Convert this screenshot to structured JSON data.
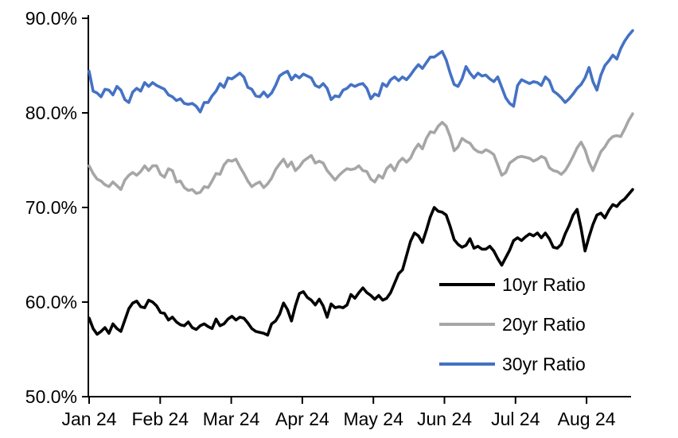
{
  "chart_data": {
    "type": "line",
    "title": "",
    "unit": "percent",
    "grid": false,
    "legend_position": "inside-lower-right",
    "y_axis": {
      "min": 50,
      "max": 90,
      "step": 10,
      "tick_labels": [
        "90.0%",
        "80.0%",
        "70.0%",
        "60.0%",
        "50.0%"
      ]
    },
    "x_axis": {
      "tick_labels": [
        "Jan 24",
        "Feb 24",
        "Mar 24",
        "Apr 24",
        "May 24",
        "Jun 24",
        "Jul 24",
        "Aug 24"
      ],
      "range_note": "daily data from Jan 2024 to ~Aug 20 2024"
    },
    "legend": {
      "items": [
        {
          "label": "10yr Ratio",
          "color": "#000000"
        },
        {
          "label": "20yr Ratio",
          "color": "#a6a6a6"
        },
        {
          "label": "30yr Ratio",
          "color": "#4472c4"
        }
      ]
    },
    "series": [
      {
        "name": "10yr Ratio",
        "color": "#000000",
        "values": [
          58.3,
          57.2,
          56.6,
          56.9,
          57.3,
          56.7,
          57.7,
          57.2,
          56.9,
          58.1,
          59.3,
          59.9,
          60.1,
          59.5,
          59.4,
          60.2,
          60.0,
          59.6,
          58.9,
          58.8,
          58.1,
          58.4,
          57.9,
          57.6,
          57.5,
          57.9,
          57.3,
          57.1,
          57.5,
          57.7,
          57.4,
          57.2,
          58.2,
          57.5,
          57.7,
          58.2,
          58.5,
          58.1,
          58.4,
          58.3,
          57.8,
          57.2,
          56.9,
          56.8,
          56.7,
          56.5,
          57.7,
          58.0,
          58.7,
          59.9,
          59.2,
          58.0,
          59.6,
          60.9,
          61.1,
          60.5,
          60.2,
          59.7,
          60.3,
          59.6,
          58.4,
          59.8,
          59.4,
          59.5,
          59.4,
          59.7,
          60.8,
          60.4,
          61.0,
          61.5,
          61.0,
          60.7,
          60.3,
          60.7,
          60.2,
          60.4,
          61.0,
          62.0,
          63.0,
          63.4,
          64.9,
          66.4,
          67.3,
          67.0,
          66.3,
          67.6,
          69.0,
          70.0,
          69.6,
          69.5,
          69.2,
          68.0,
          66.6,
          66.1,
          65.8,
          66.0,
          66.7,
          65.7,
          65.9,
          65.6,
          65.6,
          65.9,
          65.4,
          64.6,
          63.9,
          64.7,
          65.5,
          66.5,
          66.8,
          66.5,
          66.9,
          67.2,
          67.0,
          67.3,
          66.8,
          67.3,
          66.7,
          65.8,
          65.7,
          66.1,
          67.2,
          68.1,
          69.2,
          69.8,
          67.8,
          65.4,
          66.9,
          68.2,
          69.2,
          69.4,
          68.9,
          69.7,
          70.3,
          70.1,
          70.6,
          70.9,
          71.4,
          71.9
        ]
      },
      {
        "name": "20yr Ratio",
        "color": "#a6a6a6",
        "values": [
          74.4,
          73.6,
          73.0,
          72.8,
          72.4,
          72.2,
          72.7,
          72.3,
          71.9,
          72.9,
          73.4,
          73.7,
          73.4,
          73.8,
          74.4,
          73.9,
          74.4,
          74.4,
          73.5,
          73.2,
          74.1,
          73.9,
          72.7,
          72.8,
          72.1,
          71.8,
          71.9,
          71.5,
          71.6,
          72.2,
          72.1,
          72.8,
          73.6,
          73.5,
          74.5,
          75.0,
          74.9,
          75.1,
          74.3,
          73.6,
          72.8,
          72.2,
          72.5,
          72.7,
          72.1,
          72.5,
          73.1,
          74.0,
          74.6,
          75.1,
          74.3,
          74.8,
          73.9,
          74.3,
          74.9,
          75.2,
          75.5,
          74.7,
          74.9,
          74.7,
          73.9,
          73.4,
          72.9,
          73.4,
          73.8,
          74.1,
          74.0,
          74.1,
          74.4,
          73.9,
          73.8,
          73.0,
          72.7,
          73.4,
          73.1,
          74.1,
          74.5,
          73.9,
          74.8,
          75.2,
          74.8,
          75.2,
          76.1,
          76.7,
          76.2,
          77.3,
          78.0,
          77.9,
          78.6,
          79.0,
          78.6,
          77.5,
          76.0,
          76.4,
          77.3,
          77.0,
          76.8,
          76.2,
          75.9,
          75.8,
          76.1,
          75.9,
          75.6,
          74.5,
          73.4,
          73.7,
          74.7,
          75.0,
          75.3,
          75.4,
          75.3,
          75.2,
          74.9,
          75.1,
          75.4,
          75.2,
          74.2,
          73.9,
          73.8,
          73.5,
          73.9,
          74.6,
          75.4,
          76.3,
          76.9,
          76.1,
          74.8,
          73.9,
          74.9,
          75.9,
          76.4,
          77.1,
          77.5,
          77.6,
          77.5,
          78.3,
          79.2,
          79.9
        ]
      },
      {
        "name": "30yr Ratio",
        "color": "#4472c4",
        "values": [
          84.4,
          82.3,
          82.1,
          81.7,
          82.5,
          82.4,
          81.9,
          82.8,
          82.4,
          81.4,
          81.1,
          82.2,
          82.6,
          82.3,
          83.2,
          82.8,
          83.2,
          82.9,
          82.7,
          82.5,
          81.9,
          81.7,
          81.3,
          81.5,
          81.0,
          80.9,
          81.0,
          80.7,
          80.1,
          81.1,
          81.1,
          81.8,
          82.3,
          83.1,
          82.7,
          83.7,
          83.6,
          83.9,
          84.2,
          83.8,
          82.7,
          82.5,
          81.8,
          81.7,
          82.2,
          81.7,
          82.1,
          82.9,
          83.9,
          84.2,
          84.4,
          83.5,
          84.0,
          83.7,
          84.1,
          83.9,
          83.7,
          82.9,
          82.7,
          83.1,
          82.6,
          81.4,
          81.8,
          81.7,
          82.4,
          82.6,
          83.0,
          82.8,
          83.0,
          83.1,
          82.6,
          81.5,
          82.0,
          81.8,
          83.1,
          82.8,
          83.5,
          83.8,
          83.4,
          83.8,
          83.5,
          84.0,
          84.6,
          85.1,
          84.7,
          85.3,
          85.9,
          85.9,
          86.2,
          86.5,
          85.6,
          84.2,
          83.0,
          82.8,
          83.6,
          84.9,
          84.2,
          83.7,
          84.2,
          83.9,
          84.0,
          83.6,
          83.3,
          83.8,
          82.7,
          81.6,
          81.0,
          80.7,
          82.9,
          83.5,
          83.3,
          83.1,
          83.3,
          83.2,
          82.9,
          83.8,
          83.4,
          82.3,
          82.0,
          81.6,
          81.1,
          81.5,
          82.0,
          82.6,
          83.0,
          83.7,
          84.8,
          83.3,
          82.4,
          84.0,
          85.0,
          85.5,
          86.1,
          85.7,
          86.8,
          87.6,
          88.2,
          88.7
        ]
      }
    ]
  }
}
